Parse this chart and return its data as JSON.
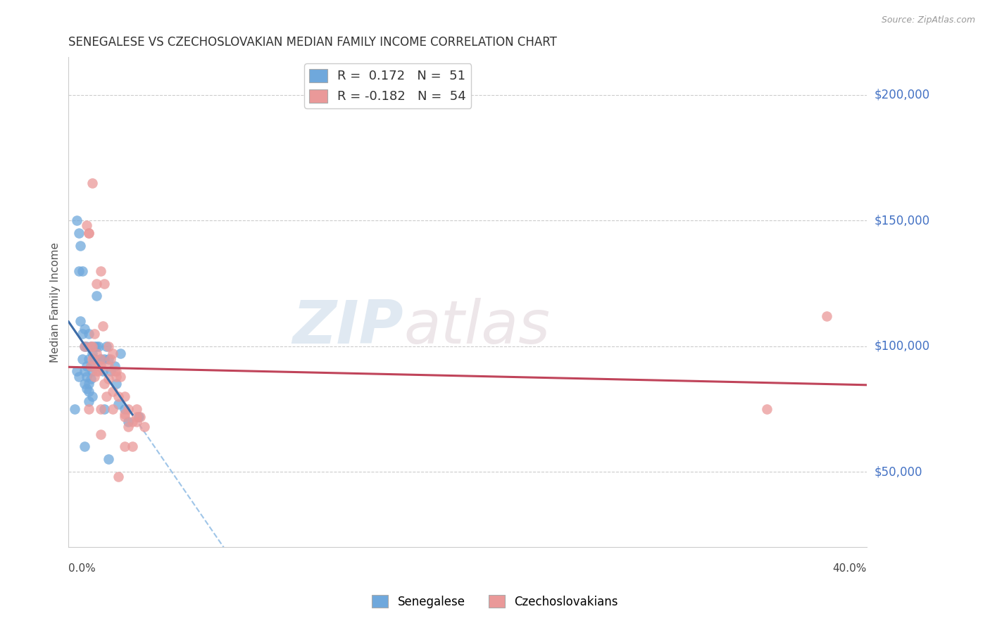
{
  "title": "SENEGALESE VS CZECHOSLOVAKIAN MEDIAN FAMILY INCOME CORRELATION CHART",
  "source": "Source: ZipAtlas.com",
  "ylabel": "Median Family Income",
  "yticks": [
    50000,
    100000,
    150000,
    200000
  ],
  "ytick_labels": [
    "$50,000",
    "$100,000",
    "$150,000",
    "$200,000"
  ],
  "xlim": [
    0.0,
    0.4
  ],
  "ylim": [
    20000,
    215000
  ],
  "legend_blue_R": "0.172",
  "legend_blue_N": "51",
  "legend_pink_R": "-0.182",
  "legend_pink_N": "54",
  "blue_color": "#6fa8dc",
  "pink_color": "#ea9999",
  "blue_line_color": "#3d6ca8",
  "pink_line_color": "#c0445a",
  "blue_dashed_color": "#9fc5e8",
  "watermark_zip": "ZIP",
  "watermark_atlas": "atlas",
  "blue_scatter_x": [
    0.003,
    0.004,
    0.005,
    0.006,
    0.006,
    0.007,
    0.007,
    0.008,
    0.008,
    0.008,
    0.009,
    0.009,
    0.009,
    0.01,
    0.01,
    0.011,
    0.011,
    0.012,
    0.012,
    0.013,
    0.013,
    0.014,
    0.015,
    0.016,
    0.017,
    0.018,
    0.019,
    0.02,
    0.021,
    0.023,
    0.024,
    0.026,
    0.028,
    0.03,
    0.004,
    0.005,
    0.007,
    0.008,
    0.009,
    0.01,
    0.01,
    0.011,
    0.012,
    0.014,
    0.018,
    0.02,
    0.025,
    0.035,
    0.005,
    0.008,
    0.01
  ],
  "blue_scatter_y": [
    75000,
    90000,
    130000,
    140000,
    110000,
    105000,
    95000,
    100000,
    90000,
    85000,
    100000,
    92000,
    88000,
    105000,
    95000,
    100000,
    92000,
    97000,
    90000,
    100000,
    95000,
    100000,
    100000,
    95000,
    90000,
    95000,
    100000,
    95000,
    90000,
    92000,
    85000,
    97000,
    75000,
    70000,
    150000,
    145000,
    130000,
    107000,
    83000,
    78000,
    82000,
    87000,
    80000,
    120000,
    75000,
    55000,
    77000,
    72000,
    88000,
    60000,
    85000
  ],
  "pink_scatter_x": [
    0.008,
    0.009,
    0.01,
    0.01,
    0.011,
    0.011,
    0.012,
    0.012,
    0.013,
    0.013,
    0.014,
    0.014,
    0.015,
    0.015,
    0.016,
    0.016,
    0.017,
    0.018,
    0.019,
    0.02,
    0.021,
    0.022,
    0.023,
    0.024,
    0.025,
    0.026,
    0.028,
    0.03,
    0.032,
    0.034,
    0.036,
    0.038,
    0.014,
    0.016,
    0.018,
    0.012,
    0.02,
    0.025,
    0.03,
    0.022,
    0.028,
    0.034,
    0.016,
    0.02,
    0.024,
    0.028,
    0.032,
    0.01,
    0.016,
    0.022,
    0.028,
    0.034,
    0.38,
    0.35
  ],
  "pink_scatter_y": [
    100000,
    148000,
    145000,
    145000,
    100000,
    92000,
    100000,
    95000,
    105000,
    88000,
    97000,
    90000,
    92000,
    90000,
    92000,
    95000,
    108000,
    85000,
    80000,
    87000,
    95000,
    82000,
    90000,
    88000,
    80000,
    88000,
    72000,
    75000,
    70000,
    70000,
    72000,
    68000,
    125000,
    130000,
    125000,
    165000,
    92000,
    48000,
    68000,
    97000,
    80000,
    72000,
    75000,
    100000,
    90000,
    73000,
    60000,
    75000,
    65000,
    75000,
    60000,
    75000,
    112000,
    75000
  ]
}
